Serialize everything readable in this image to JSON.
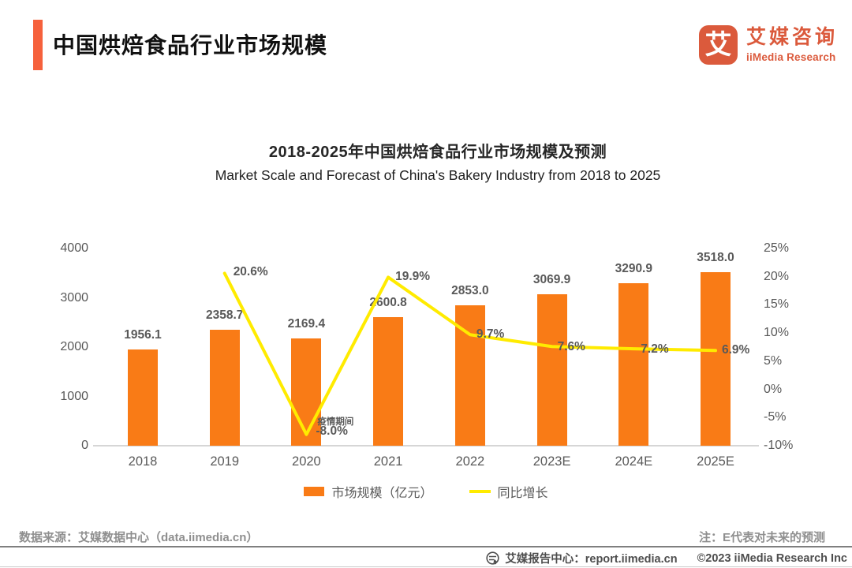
{
  "header": {
    "title": "中国烘焙食品行业市场规模",
    "logo": {
      "glyph": "艾",
      "name_cn": "艾媒咨询",
      "name_en": "iiMedia Research"
    }
  },
  "chart": {
    "title_cn": "2018-2025年中国烘焙食品行业市场规模及预测",
    "title_en": "Market Scale and Forecast of China's Bakery Industry from 2018 to 2025"
  },
  "chart_data": {
    "type": "bar+line",
    "categories": [
      "2018",
      "2019",
      "2020",
      "2021",
      "2022",
      "2023E",
      "2024E",
      "2025E"
    ],
    "series": [
      {
        "name": "市场规模（亿元）",
        "type": "bar",
        "color": "#F97B16",
        "values": [
          1956.1,
          2358.7,
          2169.4,
          2600.8,
          2853.0,
          3069.9,
          3290.9,
          3518.0
        ],
        "labels": [
          "1956.1",
          "2358.7",
          "2169.4",
          "2600.8",
          "2853.0",
          "3069.9",
          "3290.9",
          "3518.0"
        ]
      },
      {
        "name": "同比增长",
        "type": "line",
        "color": "#FFEB00",
        "values": [
          null,
          20.6,
          -8.0,
          19.9,
          9.7,
          7.6,
          7.2,
          6.9
        ],
        "labels": [
          null,
          "20.6%",
          "-8.0%",
          "19.9%",
          "9.7%",
          "7.6%",
          "7.2%",
          "6.9%"
        ]
      }
    ],
    "annotation": "疫情期间",
    "left_axis": {
      "ticks": [
        "0",
        "1000",
        "2000",
        "3000",
        "4000"
      ],
      "min": 0,
      "max": 4000
    },
    "right_axis": {
      "ticks": [
        "-10%",
        "-5%",
        "0%",
        "5%",
        "10%",
        "15%",
        "20%",
        "25%"
      ],
      "min": -10,
      "max": 25
    },
    "grid": false,
    "legend_position": "bottom"
  },
  "footer": {
    "source": "数据来源：艾媒数据中心（data.iimedia.cn）",
    "note": "注：E代表对未来的预测",
    "report_center": "艾媒报告中心：report.iimedia.cn",
    "copyright": "©2023 iiMedia Research  Inc"
  }
}
